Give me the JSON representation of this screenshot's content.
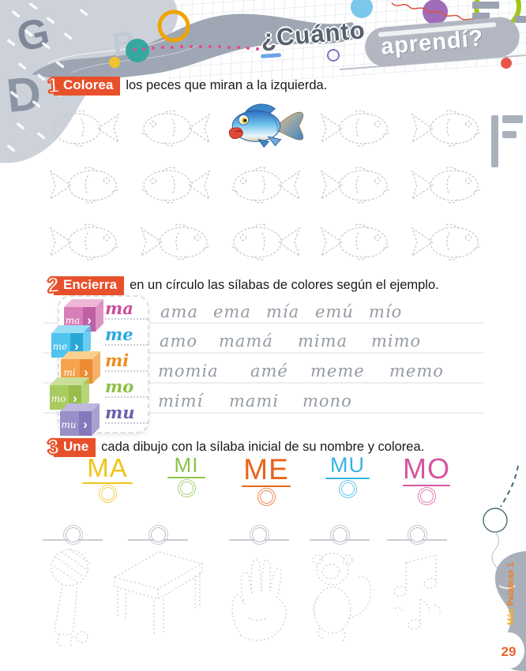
{
  "header": {
    "title_lead": "¿Cuánto",
    "title_tail": "aprendí?",
    "capsule_color": "#b2b7c1",
    "decor_letters": [
      "G",
      "B",
      "D"
    ]
  },
  "task1": {
    "number": "1",
    "label": "Colorea",
    "instruction": "los peces que miran a la izquierda.",
    "label_color": "#e8502b",
    "fish_rows": [
      [
        "left",
        "left",
        "example",
        "right",
        "right"
      ],
      [
        "right",
        "left",
        "left",
        "right",
        "right"
      ],
      [
        "right",
        "right",
        "left",
        "right",
        "right"
      ]
    ],
    "example_fish": "blue-fish-facing-left"
  },
  "task2": {
    "number": "2",
    "label": "Encierra",
    "instruction": "en un círculo las sílabas de colores según el ejemplo.",
    "arrow": "›",
    "key": [
      {
        "syllable": "ma",
        "text_color": "#ce4b9b",
        "cube_front": "#d87fb7",
        "cube_top": "#ecb8d6",
        "cube_side": "#c05fa4"
      },
      {
        "syllable": "me",
        "text_color": "#2aa8e0",
        "cube_front": "#4fc4ee",
        "cube_top": "#9adef5",
        "cube_side": "#29a8d8"
      },
      {
        "syllable": "mi",
        "text_color": "#f08c1e",
        "cube_front": "#f5a34c",
        "cube_top": "#fbCf8d",
        "cube_side": "#ef8b33"
      },
      {
        "syllable": "mo",
        "text_color": "#8bc043",
        "cube_front": "#a9cc60",
        "cube_top": "#c9df97",
        "cube_side": "#97bd4a"
      },
      {
        "syllable": "mu",
        "text_color": "#6a5fad",
        "cube_front": "#9a8fc8",
        "cube_top": "#bfb7dc",
        "cube_side": "#8577bb"
      }
    ],
    "word_rows": [
      [
        "ama",
        "ema",
        "mía",
        "emú",
        "mío"
      ],
      [
        "amo",
        "mamá",
        "mima",
        "mimo"
      ],
      [
        "momia",
        "amé",
        "meme",
        "memo"
      ],
      [
        "mimí",
        "mami",
        "mono"
      ]
    ]
  },
  "task3": {
    "number": "3",
    "label": "Une",
    "instruction": "cada dibujo con la sílaba inicial de su nombre y colorea.",
    "syllables": [
      {
        "text": "MA",
        "color": "#f2c319",
        "size": 33,
        "uline": 64
      },
      {
        "text": "MI",
        "color": "#8cc34b",
        "size": 26,
        "uline": 48
      },
      {
        "text": "ME",
        "color": "#e8641b",
        "size": 37,
        "uline": 62
      },
      {
        "text": "MU",
        "color": "#36b4e4",
        "size": 27,
        "uline": 56
      },
      {
        "text": "MO",
        "color": "#d6559f",
        "size": 36,
        "uline": 60
      }
    ],
    "pictures": [
      "microfono",
      "mesa",
      "mano",
      "mono",
      "notas-musicales"
    ]
  },
  "footer": {
    "page_number": "29",
    "series": "Más Palabras 1"
  }
}
